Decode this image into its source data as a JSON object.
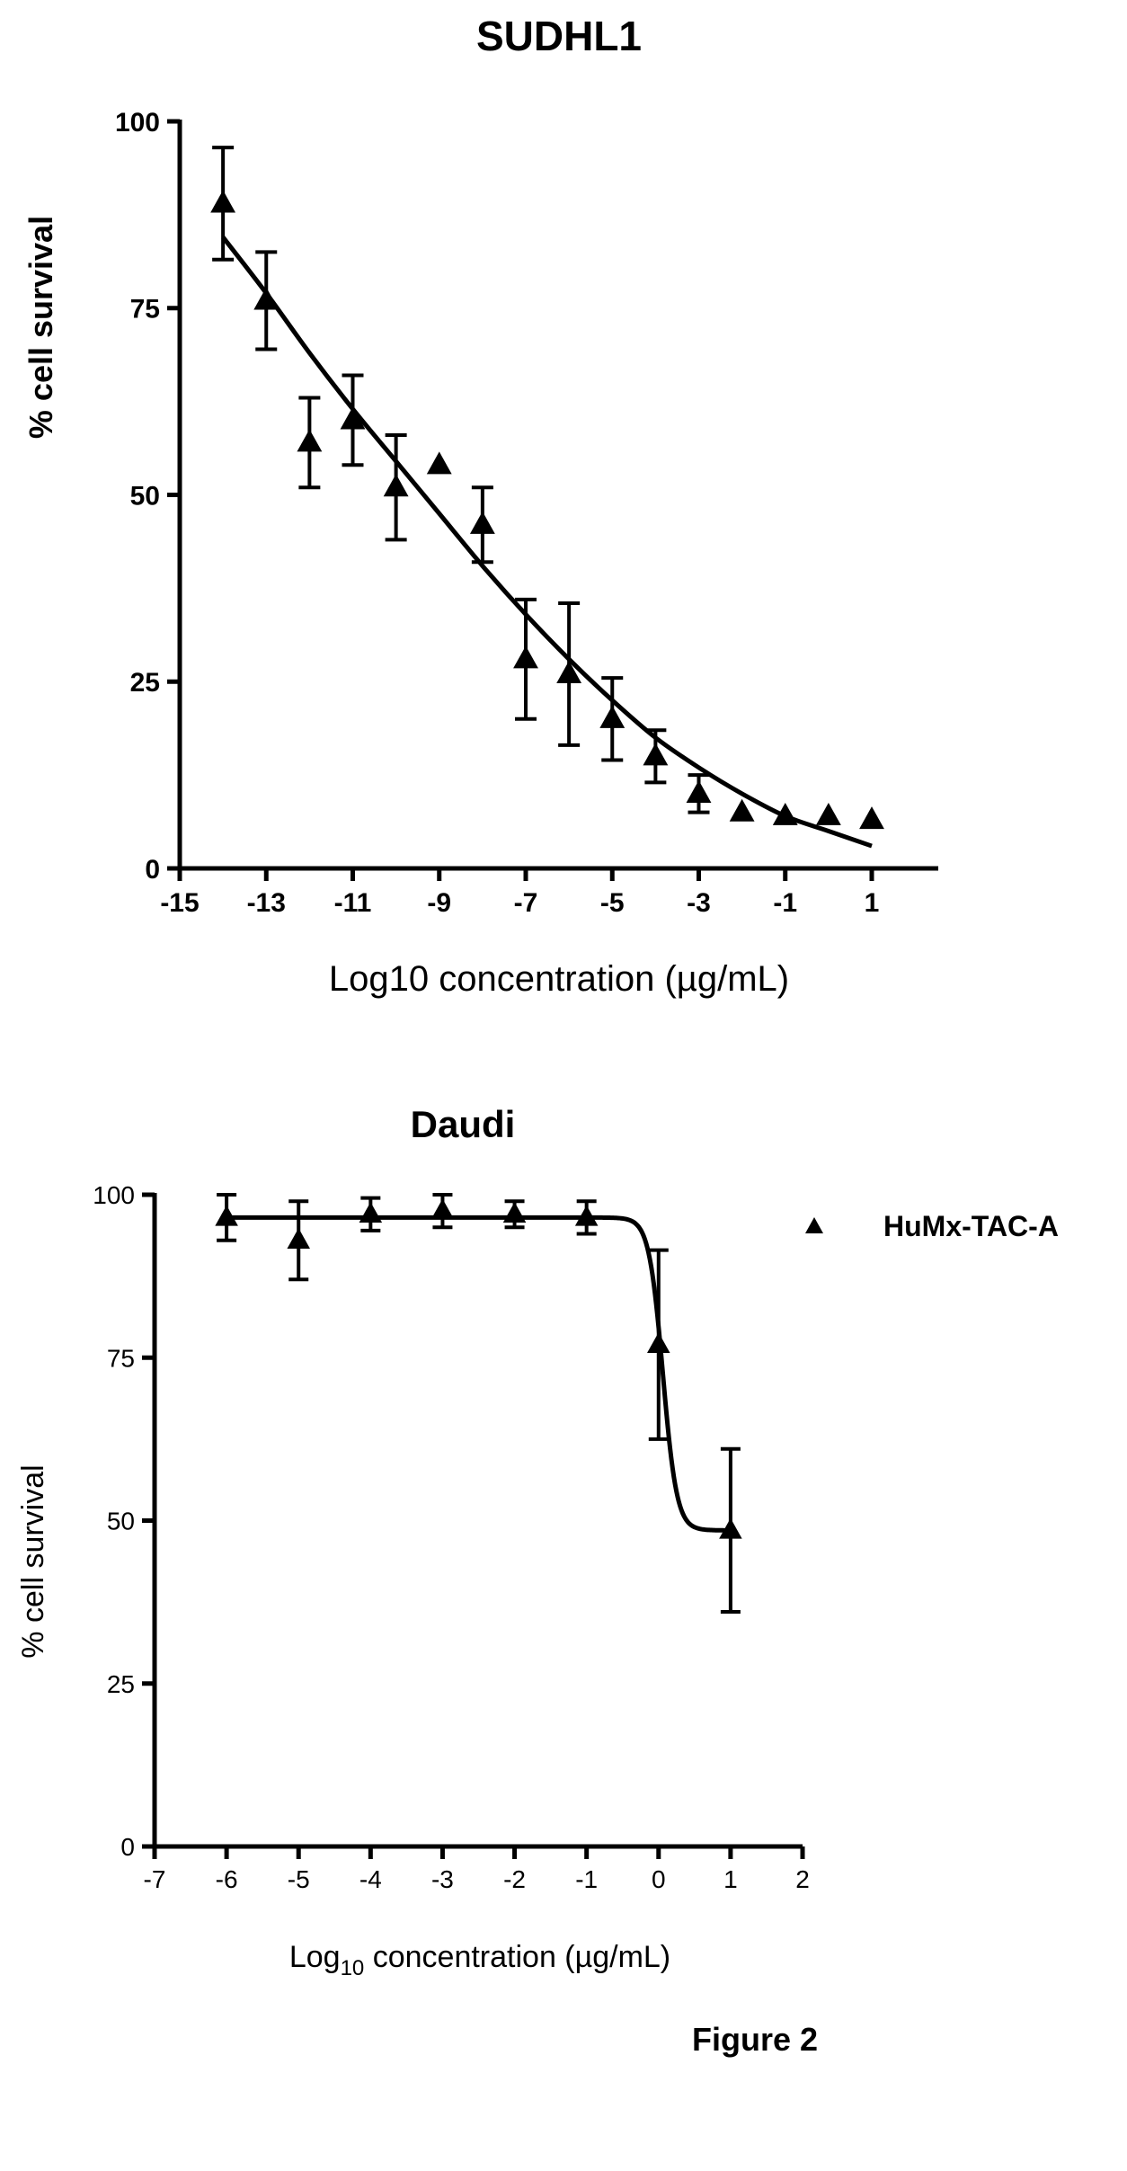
{
  "figure_label": "Figure 2",
  "chart_data": [
    {
      "type": "scatter",
      "title": "SUDHL1",
      "xlabel": "Log10 concentration (µg/mL)",
      "ylabel": "% cell survival",
      "xlim": [
        -15,
        1
      ],
      "ylim": [
        0,
        100
      ],
      "xticks": [
        -15,
        -13,
        -11,
        -9,
        -7,
        -5,
        -3,
        -1,
        1
      ],
      "yticks": [
        0,
        25,
        50,
        75,
        100
      ],
      "grid": false,
      "legend": null,
      "series": [
        {
          "marker": "triangle",
          "x": [
            -14,
            -13,
            -12,
            -11,
            -10,
            -9,
            -8,
            -7,
            -6,
            -5,
            -4,
            -3,
            -2,
            -1,
            0,
            1
          ],
          "y": [
            89,
            76,
            57,
            60,
            51,
            54,
            46,
            28,
            26,
            20,
            15,
            10,
            7.5,
            7,
            7,
            6.5
          ],
          "yerr": [
            7.5,
            6.5,
            6,
            6,
            7,
            null,
            5,
            8,
            9.5,
            5.5,
            3.5,
            2.5,
            null,
            null,
            null,
            null
          ],
          "fit": {
            "x": [
              -14,
              -13,
              -12,
              -11,
              -10,
              -9,
              -8,
              -7,
              -6,
              -5,
              -4,
              -3,
              -2,
              -1,
              0,
              1
            ],
            "y": [
              84.5,
              77,
              69,
              61.5,
              54.5,
              47.5,
              40.5,
              34,
              28,
              22.5,
              17.5,
              13.5,
              10,
              7,
              5,
              3
            ]
          }
        }
      ]
    },
    {
      "type": "scatter",
      "title": "Daudi",
      "xlabel_main": "Log",
      "xlabel_sub": "10",
      "xlabel_rest": " concentration (µg/mL)",
      "ylabel": "% cell survival",
      "xlim": [
        -7,
        2
      ],
      "ylim": [
        0,
        100
      ],
      "xticks": [
        -7,
        -6,
        -5,
        -4,
        -3,
        -2,
        -1,
        0,
        1,
        2
      ],
      "yticks": [
        0,
        25,
        50,
        75,
        100
      ],
      "grid": false,
      "legend": "right",
      "series": [
        {
          "name": "HuMx-TAC-A",
          "marker": "triangle",
          "x": [
            -6,
            -5,
            -4,
            -3,
            -2,
            -1,
            0,
            1
          ],
          "y": [
            96.5,
            93,
            97,
            97.5,
            97,
            96.5,
            77,
            48.5
          ],
          "yerr": [
            3.5,
            6,
            2.5,
            2.5,
            2,
            2.5,
            14.5,
            12.5
          ],
          "fit": {
            "bottom": 48.5,
            "top": 96.5,
            "logEC50": 0.06,
            "hill": 4.5
          }
        }
      ]
    }
  ]
}
